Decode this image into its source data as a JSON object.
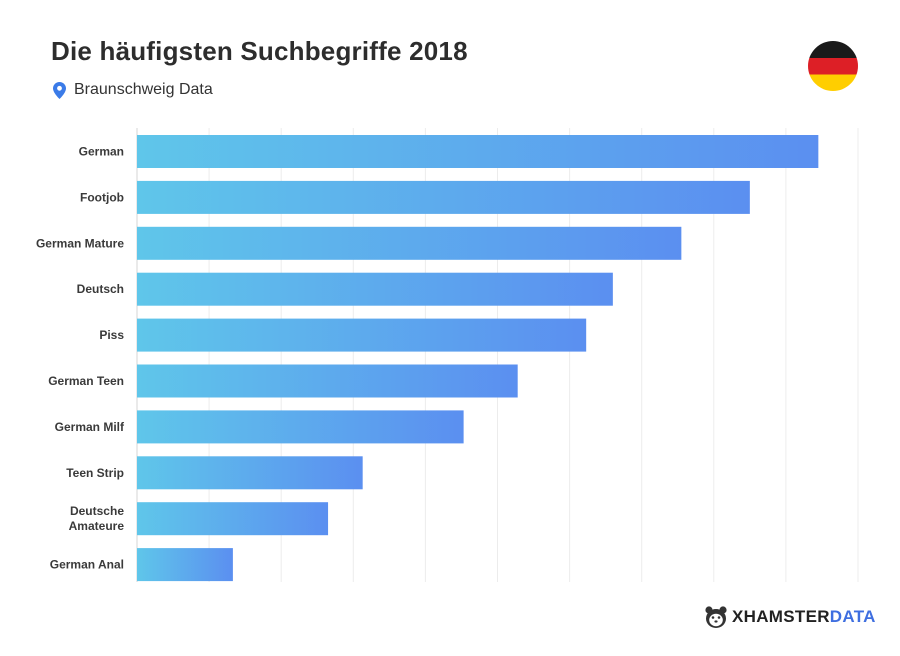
{
  "header": {
    "title": "Die häufigsten Suchbegriffe 2018",
    "subtitle": "Braunschweig Data",
    "pin_icon": "map-pin-icon",
    "flag_icon": "germany-flag-icon"
  },
  "brand": {
    "part1": "XHAMSTER",
    "part2": "DATA",
    "icon": "hamster-logo-icon"
  },
  "colors": {
    "bar_gradient_start": "#5fc6ea",
    "bar_gradient_end": "#5b8ff0",
    "pin": "#3b7be8",
    "brand_accent": "#3f6fe0"
  },
  "chart_data": {
    "type": "bar",
    "orientation": "horizontal",
    "title": "Die häufigsten Suchbegriffe 2018",
    "subtitle": "Braunschweig Data",
    "categories": [
      [
        "German"
      ],
      [
        "Footjob"
      ],
      [
        "German Mature"
      ],
      [
        "Deutsch"
      ],
      [
        "Piss"
      ],
      [
        "German Teen"
      ],
      [
        "German Milf"
      ],
      [
        "Teen Strip"
      ],
      [
        "Deutsche",
        "Amateure"
      ],
      [
        "German Anal"
      ]
    ],
    "values": [
      94.5,
      85,
      75.5,
      66,
      62.3,
      52.8,
      45.3,
      31.3,
      26.5,
      13.3
    ],
    "xlim": [
      0,
      100
    ],
    "grid": true,
    "tick_labels_shown": false
  }
}
